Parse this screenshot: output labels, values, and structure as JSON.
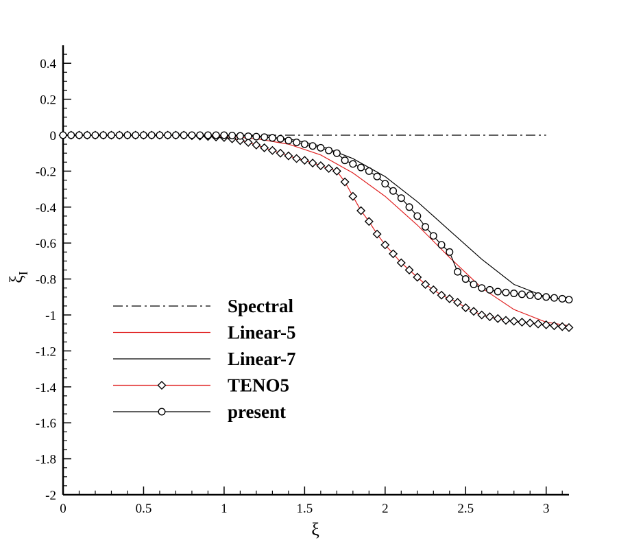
{
  "chart_data": {
    "type": "line",
    "title": "",
    "xlabel": "ξ",
    "ylabel": "ξI",
    "ylabel_main": "ξ",
    "ylabel_sub": "I",
    "xlim": [
      0,
      3.1416
    ],
    "ylim": [
      -2,
      0.5
    ],
    "xticks": [
      0,
      0.5,
      1,
      1.5,
      2,
      2.5,
      3
    ],
    "xtick_labels": [
      "0",
      "0.5",
      "1",
      "1.5",
      "2",
      "2.5",
      "3"
    ],
    "yticks": [
      0.4,
      0.2,
      0,
      -0.2,
      -0.4,
      -0.6,
      -0.8,
      -1,
      -1.2,
      -1.4,
      -1.6,
      -1.8,
      -2
    ],
    "ytick_labels": [
      "0.4",
      "0.2",
      "0",
      "-0.2",
      "-0.4",
      "-0.6",
      "-0.8",
      "-1",
      "-1.2",
      "-1.4",
      "-1.6",
      "-1.8",
      "-2"
    ],
    "grid": false,
    "legend_position": "lower-left",
    "series": [
      {
        "name": "Spectral",
        "color": "#000000",
        "style": "dashdot",
        "marker": "none",
        "x": [
          0,
          3.0
        ],
        "y": [
          0,
          0
        ]
      },
      {
        "name": "Linear-5",
        "color": "#e02020",
        "style": "solid",
        "marker": "none",
        "x": [
          0,
          0.8,
          1.0,
          1.2,
          1.4,
          1.6,
          1.8,
          2.0,
          2.2,
          2.4,
          2.6,
          2.8,
          3.0,
          3.1416
        ],
        "y": [
          0,
          0,
          -0.005,
          -0.02,
          -0.05,
          -0.11,
          -0.21,
          -0.34,
          -0.5,
          -0.68,
          -0.85,
          -0.97,
          -1.04,
          -1.06
        ]
      },
      {
        "name": "Linear-7",
        "color": "#000000",
        "style": "solid",
        "marker": "none",
        "x": [
          0,
          1.0,
          1.2,
          1.4,
          1.6,
          1.8,
          2.0,
          2.2,
          2.4,
          2.6,
          2.8,
          3.0,
          3.1416
        ],
        "y": [
          0,
          0,
          -0.005,
          -0.02,
          -0.06,
          -0.13,
          -0.23,
          -0.37,
          -0.53,
          -0.69,
          -0.83,
          -0.9,
          -0.92
        ]
      },
      {
        "name": "TENO5",
        "color": "#e02020",
        "style": "solid",
        "marker": "diamond",
        "marker_color": "#000000",
        "x": [
          0,
          0.05,
          0.1,
          0.15,
          0.2,
          0.25,
          0.3,
          0.35,
          0.4,
          0.45,
          0.5,
          0.55,
          0.6,
          0.65,
          0.7,
          0.75,
          0.8,
          0.85,
          0.9,
          0.95,
          1.0,
          1.05,
          1.1,
          1.15,
          1.2,
          1.25,
          1.3,
          1.35,
          1.4,
          1.45,
          1.5,
          1.55,
          1.6,
          1.65,
          1.7,
          1.75,
          1.8,
          1.85,
          1.9,
          1.95,
          2.0,
          2.05,
          2.1,
          2.15,
          2.2,
          2.25,
          2.3,
          2.35,
          2.4,
          2.45,
          2.5,
          2.55,
          2.6,
          2.65,
          2.7,
          2.75,
          2.8,
          2.85,
          2.9,
          2.95,
          3.0,
          3.05,
          3.1,
          3.1416
        ],
        "y": [
          0,
          0,
          0,
          0,
          0,
          0,
          0,
          0,
          0,
          0,
          0,
          0,
          0,
          0,
          0,
          0,
          -0.003,
          -0.005,
          -0.007,
          -0.01,
          -0.013,
          -0.02,
          -0.03,
          -0.04,
          -0.055,
          -0.07,
          -0.085,
          -0.1,
          -0.115,
          -0.13,
          -0.14,
          -0.155,
          -0.17,
          -0.185,
          -0.2,
          -0.26,
          -0.34,
          -0.42,
          -0.48,
          -0.55,
          -0.61,
          -0.66,
          -0.71,
          -0.75,
          -0.79,
          -0.83,
          -0.86,
          -0.89,
          -0.91,
          -0.93,
          -0.96,
          -0.98,
          -1.0,
          -1.01,
          -1.02,
          -1.03,
          -1.035,
          -1.04,
          -1.045,
          -1.05,
          -1.055,
          -1.06,
          -1.065,
          -1.07
        ]
      },
      {
        "name": "present",
        "color": "#000000",
        "style": "solid",
        "marker": "circle",
        "marker_color": "#000000",
        "x": [
          0,
          0.05,
          0.1,
          0.15,
          0.2,
          0.25,
          0.3,
          0.35,
          0.4,
          0.45,
          0.5,
          0.55,
          0.6,
          0.65,
          0.7,
          0.75,
          0.8,
          0.85,
          0.9,
          0.95,
          1.0,
          1.05,
          1.1,
          1.15,
          1.2,
          1.25,
          1.3,
          1.35,
          1.4,
          1.45,
          1.5,
          1.55,
          1.6,
          1.65,
          1.7,
          1.75,
          1.8,
          1.85,
          1.9,
          1.95,
          2.0,
          2.05,
          2.1,
          2.15,
          2.2,
          2.25,
          2.3,
          2.35,
          2.4,
          2.45,
          2.5,
          2.55,
          2.6,
          2.65,
          2.7,
          2.75,
          2.8,
          2.85,
          2.9,
          2.95,
          3.0,
          3.05,
          3.1,
          3.1416
        ],
        "y": [
          0,
          0,
          0,
          0,
          0,
          0,
          0,
          0,
          0,
          0,
          0,
          0,
          0,
          0,
          0,
          0,
          0,
          0,
          0,
          0,
          0,
          -0.002,
          -0.004,
          -0.006,
          -0.008,
          -0.011,
          -0.015,
          -0.02,
          -0.03,
          -0.04,
          -0.05,
          -0.06,
          -0.07,
          -0.085,
          -0.1,
          -0.14,
          -0.16,
          -0.18,
          -0.2,
          -0.23,
          -0.27,
          -0.31,
          -0.35,
          -0.4,
          -0.45,
          -0.51,
          -0.56,
          -0.61,
          -0.65,
          -0.76,
          -0.8,
          -0.83,
          -0.85,
          -0.86,
          -0.87,
          -0.875,
          -0.88,
          -0.885,
          -0.89,
          -0.895,
          -0.9,
          -0.905,
          -0.91,
          -0.915
        ]
      }
    ]
  }
}
